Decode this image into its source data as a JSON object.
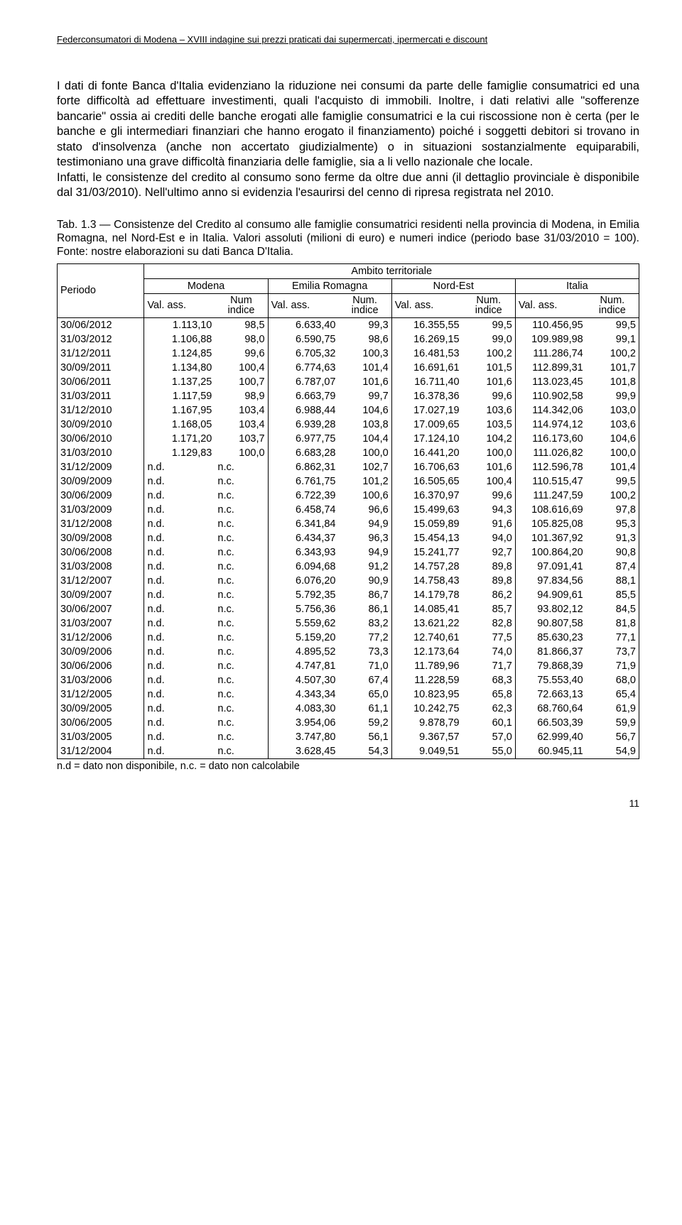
{
  "header": "Federconsumatori di Modena – XVIII indagine sui prezzi praticati dai supermercati, ipermercati e discount",
  "paragraph1": "I dati di fonte Banca d'Italia evidenziano la riduzione nei consumi da parte delle famiglie consumatrici ed una forte difficoltà ad effettuare investimenti, quali l'acquisto di immobili. Inoltre, i dati relativi alle \"sofferenze bancarie\" ossia ai crediti delle banche erogati alle famiglie consumatrici e la cui riscossione non è certa (per le banche e gli intermediari finanziari che hanno erogato il finanziamento) poiché i soggetti debitori si trovano in stato d'insolvenza (anche non accertato giudizialmente) o in situazioni sostanzialmente equiparabili, testimoniano una grave difficoltà finanziaria delle famiglie, sia a li vello nazionale che locale.",
  "paragraph2": "Infatti, le consistenze del credito al consumo sono ferme da oltre due anni (il dettaglio provinciale è disponibile dal 31/03/2010). Nell'ultimo anno si evidenzia l'esaurirsi del cenno di ripresa registrata nel 2010.",
  "caption": "Tab. 1.3 — Consistenze del Credito al consumo alle famiglie consumatrici residenti nella provincia di Modena, in Emilia Romagna, nel Nord-Est e in Italia. Valori assoluti (milioni di euro) e numeri indice (periodo base 31/03/2010 = 100).  Fonte: nostre elaborazioni su dati Banca D'Italia.",
  "table": {
    "group_header": "Ambito territoriale",
    "period_label": "Periodo",
    "regions": [
      "Modena",
      "Emilia Romagna",
      "Nord-Est",
      "Italia"
    ],
    "val_label": "Val. ass.",
    "idx_label_num": "Num indice",
    "idx_label_numdot": "Num. indice",
    "rows": [
      {
        "p": "30/06/2012",
        "v": [
          "1.113,10",
          "98,5",
          "6.633,40",
          "99,3",
          "16.355,55",
          "99,5",
          "110.456,95",
          "99,5"
        ]
      },
      {
        "p": "31/03/2012",
        "v": [
          "1.106,88",
          "98,0",
          "6.590,75",
          "98,6",
          "16.269,15",
          "99,0",
          "109.989,98",
          "99,1"
        ]
      },
      {
        "p": "31/12/2011",
        "v": [
          "1.124,85",
          "99,6",
          "6.705,32",
          "100,3",
          "16.481,53",
          "100,2",
          "111.286,74",
          "100,2"
        ]
      },
      {
        "p": "30/09/2011",
        "v": [
          "1.134,80",
          "100,4",
          "6.774,63",
          "101,4",
          "16.691,61",
          "101,5",
          "112.899,31",
          "101,7"
        ]
      },
      {
        "p": "30/06/2011",
        "v": [
          "1.137,25",
          "100,7",
          "6.787,07",
          "101,6",
          "16.711,40",
          "101,6",
          "113.023,45",
          "101,8"
        ]
      },
      {
        "p": "31/03/2011",
        "v": [
          "1.117,59",
          "98,9",
          "6.663,79",
          "99,7",
          "16.378,36",
          "99,6",
          "110.902,58",
          "99,9"
        ]
      },
      {
        "p": "31/12/2010",
        "v": [
          "1.167,95",
          "103,4",
          "6.988,44",
          "104,6",
          "17.027,19",
          "103,6",
          "114.342,06",
          "103,0"
        ]
      },
      {
        "p": "30/09/2010",
        "v": [
          "1.168,05",
          "103,4",
          "6.939,28",
          "103,8",
          "17.009,65",
          "103,5",
          "114.974,12",
          "103,6"
        ]
      },
      {
        "p": "30/06/2010",
        "v": [
          "1.171,20",
          "103,7",
          "6.977,75",
          "104,4",
          "17.124,10",
          "104,2",
          "116.173,60",
          "104,6"
        ]
      },
      {
        "p": "31/03/2010",
        "v": [
          "1.129,83",
          "100,0",
          "6.683,28",
          "100,0",
          "16.441,20",
          "100,0",
          "111.026,82",
          "100,0"
        ]
      },
      {
        "p": "31/12/2009",
        "v": [
          "n.d.",
          "n.c.",
          "6.862,31",
          "102,7",
          "16.706,63",
          "101,6",
          "112.596,78",
          "101,4"
        ]
      },
      {
        "p": "30/09/2009",
        "v": [
          "n.d.",
          "n.c.",
          "6.761,75",
          "101,2",
          "16.505,65",
          "100,4",
          "110.515,47",
          "99,5"
        ]
      },
      {
        "p": "30/06/2009",
        "v": [
          "n.d.",
          "n.c.",
          "6.722,39",
          "100,6",
          "16.370,97",
          "99,6",
          "111.247,59",
          "100,2"
        ]
      },
      {
        "p": "31/03/2009",
        "v": [
          "n.d.",
          "n.c.",
          "6.458,74",
          "96,6",
          "15.499,63",
          "94,3",
          "108.616,69",
          "97,8"
        ]
      },
      {
        "p": "31/12/2008",
        "v": [
          "n.d.",
          "n.c.",
          "6.341,84",
          "94,9",
          "15.059,89",
          "91,6",
          "105.825,08",
          "95,3"
        ]
      },
      {
        "p": "30/09/2008",
        "v": [
          "n.d.",
          "n.c.",
          "6.434,37",
          "96,3",
          "15.454,13",
          "94,0",
          "101.367,92",
          "91,3"
        ]
      },
      {
        "p": "30/06/2008",
        "v": [
          "n.d.",
          "n.c.",
          "6.343,93",
          "94,9",
          "15.241,77",
          "92,7",
          "100.864,20",
          "90,8"
        ]
      },
      {
        "p": "31/03/2008",
        "v": [
          "n.d.",
          "n.c.",
          "6.094,68",
          "91,2",
          "14.757,28",
          "89,8",
          "97.091,41",
          "87,4"
        ]
      },
      {
        "p": "31/12/2007",
        "v": [
          "n.d.",
          "n.c.",
          "6.076,20",
          "90,9",
          "14.758,43",
          "89,8",
          "97.834,56",
          "88,1"
        ]
      },
      {
        "p": "30/09/2007",
        "v": [
          "n.d.",
          "n.c.",
          "5.792,35",
          "86,7",
          "14.179,78",
          "86,2",
          "94.909,61",
          "85,5"
        ]
      },
      {
        "p": "30/06/2007",
        "v": [
          "n.d.",
          "n.c.",
          "5.756,36",
          "86,1",
          "14.085,41",
          "85,7",
          "93.802,12",
          "84,5"
        ]
      },
      {
        "p": "31/03/2007",
        "v": [
          "n.d.",
          "n.c.",
          "5.559,62",
          "83,2",
          "13.621,22",
          "82,8",
          "90.807,58",
          "81,8"
        ]
      },
      {
        "p": "31/12/2006",
        "v": [
          "n.d.",
          "n.c.",
          "5.159,20",
          "77,2",
          "12.740,61",
          "77,5",
          "85.630,23",
          "77,1"
        ]
      },
      {
        "p": "30/09/2006",
        "v": [
          "n.d.",
          "n.c.",
          "4.895,52",
          "73,3",
          "12.173,64",
          "74,0",
          "81.866,37",
          "73,7"
        ]
      },
      {
        "p": "30/06/2006",
        "v": [
          "n.d.",
          "n.c.",
          "4.747,81",
          "71,0",
          "11.789,96",
          "71,7",
          "79.868,39",
          "71,9"
        ]
      },
      {
        "p": "31/03/2006",
        "v": [
          "n.d.",
          "n.c.",
          "4.507,30",
          "67,4",
          "11.228,59",
          "68,3",
          "75.553,40",
          "68,0"
        ]
      },
      {
        "p": "31/12/2005",
        "v": [
          "n.d.",
          "n.c.",
          "4.343,34",
          "65,0",
          "10.823,95",
          "65,8",
          "72.663,13",
          "65,4"
        ]
      },
      {
        "p": "30/09/2005",
        "v": [
          "n.d.",
          "n.c.",
          "4.083,30",
          "61,1",
          "10.242,75",
          "62,3",
          "68.760,64",
          "61,9"
        ]
      },
      {
        "p": "30/06/2005",
        "v": [
          "n.d.",
          "n.c.",
          "3.954,06",
          "59,2",
          "9.878,79",
          "60,1",
          "66.503,39",
          "59,9"
        ]
      },
      {
        "p": "31/03/2005",
        "v": [
          "n.d.",
          "n.c.",
          "3.747,80",
          "56,1",
          "9.367,57",
          "57,0",
          "62.999,40",
          "56,7"
        ]
      },
      {
        "p": "31/12/2004",
        "v": [
          "n.d.",
          "n.c.",
          "3.628,45",
          "54,3",
          "9.049,51",
          "55,0",
          "60.945,11",
          "54,9"
        ]
      }
    ]
  },
  "footnote": "n.d = dato non disponibile, n.c. = dato non calcolabile",
  "page": "11"
}
